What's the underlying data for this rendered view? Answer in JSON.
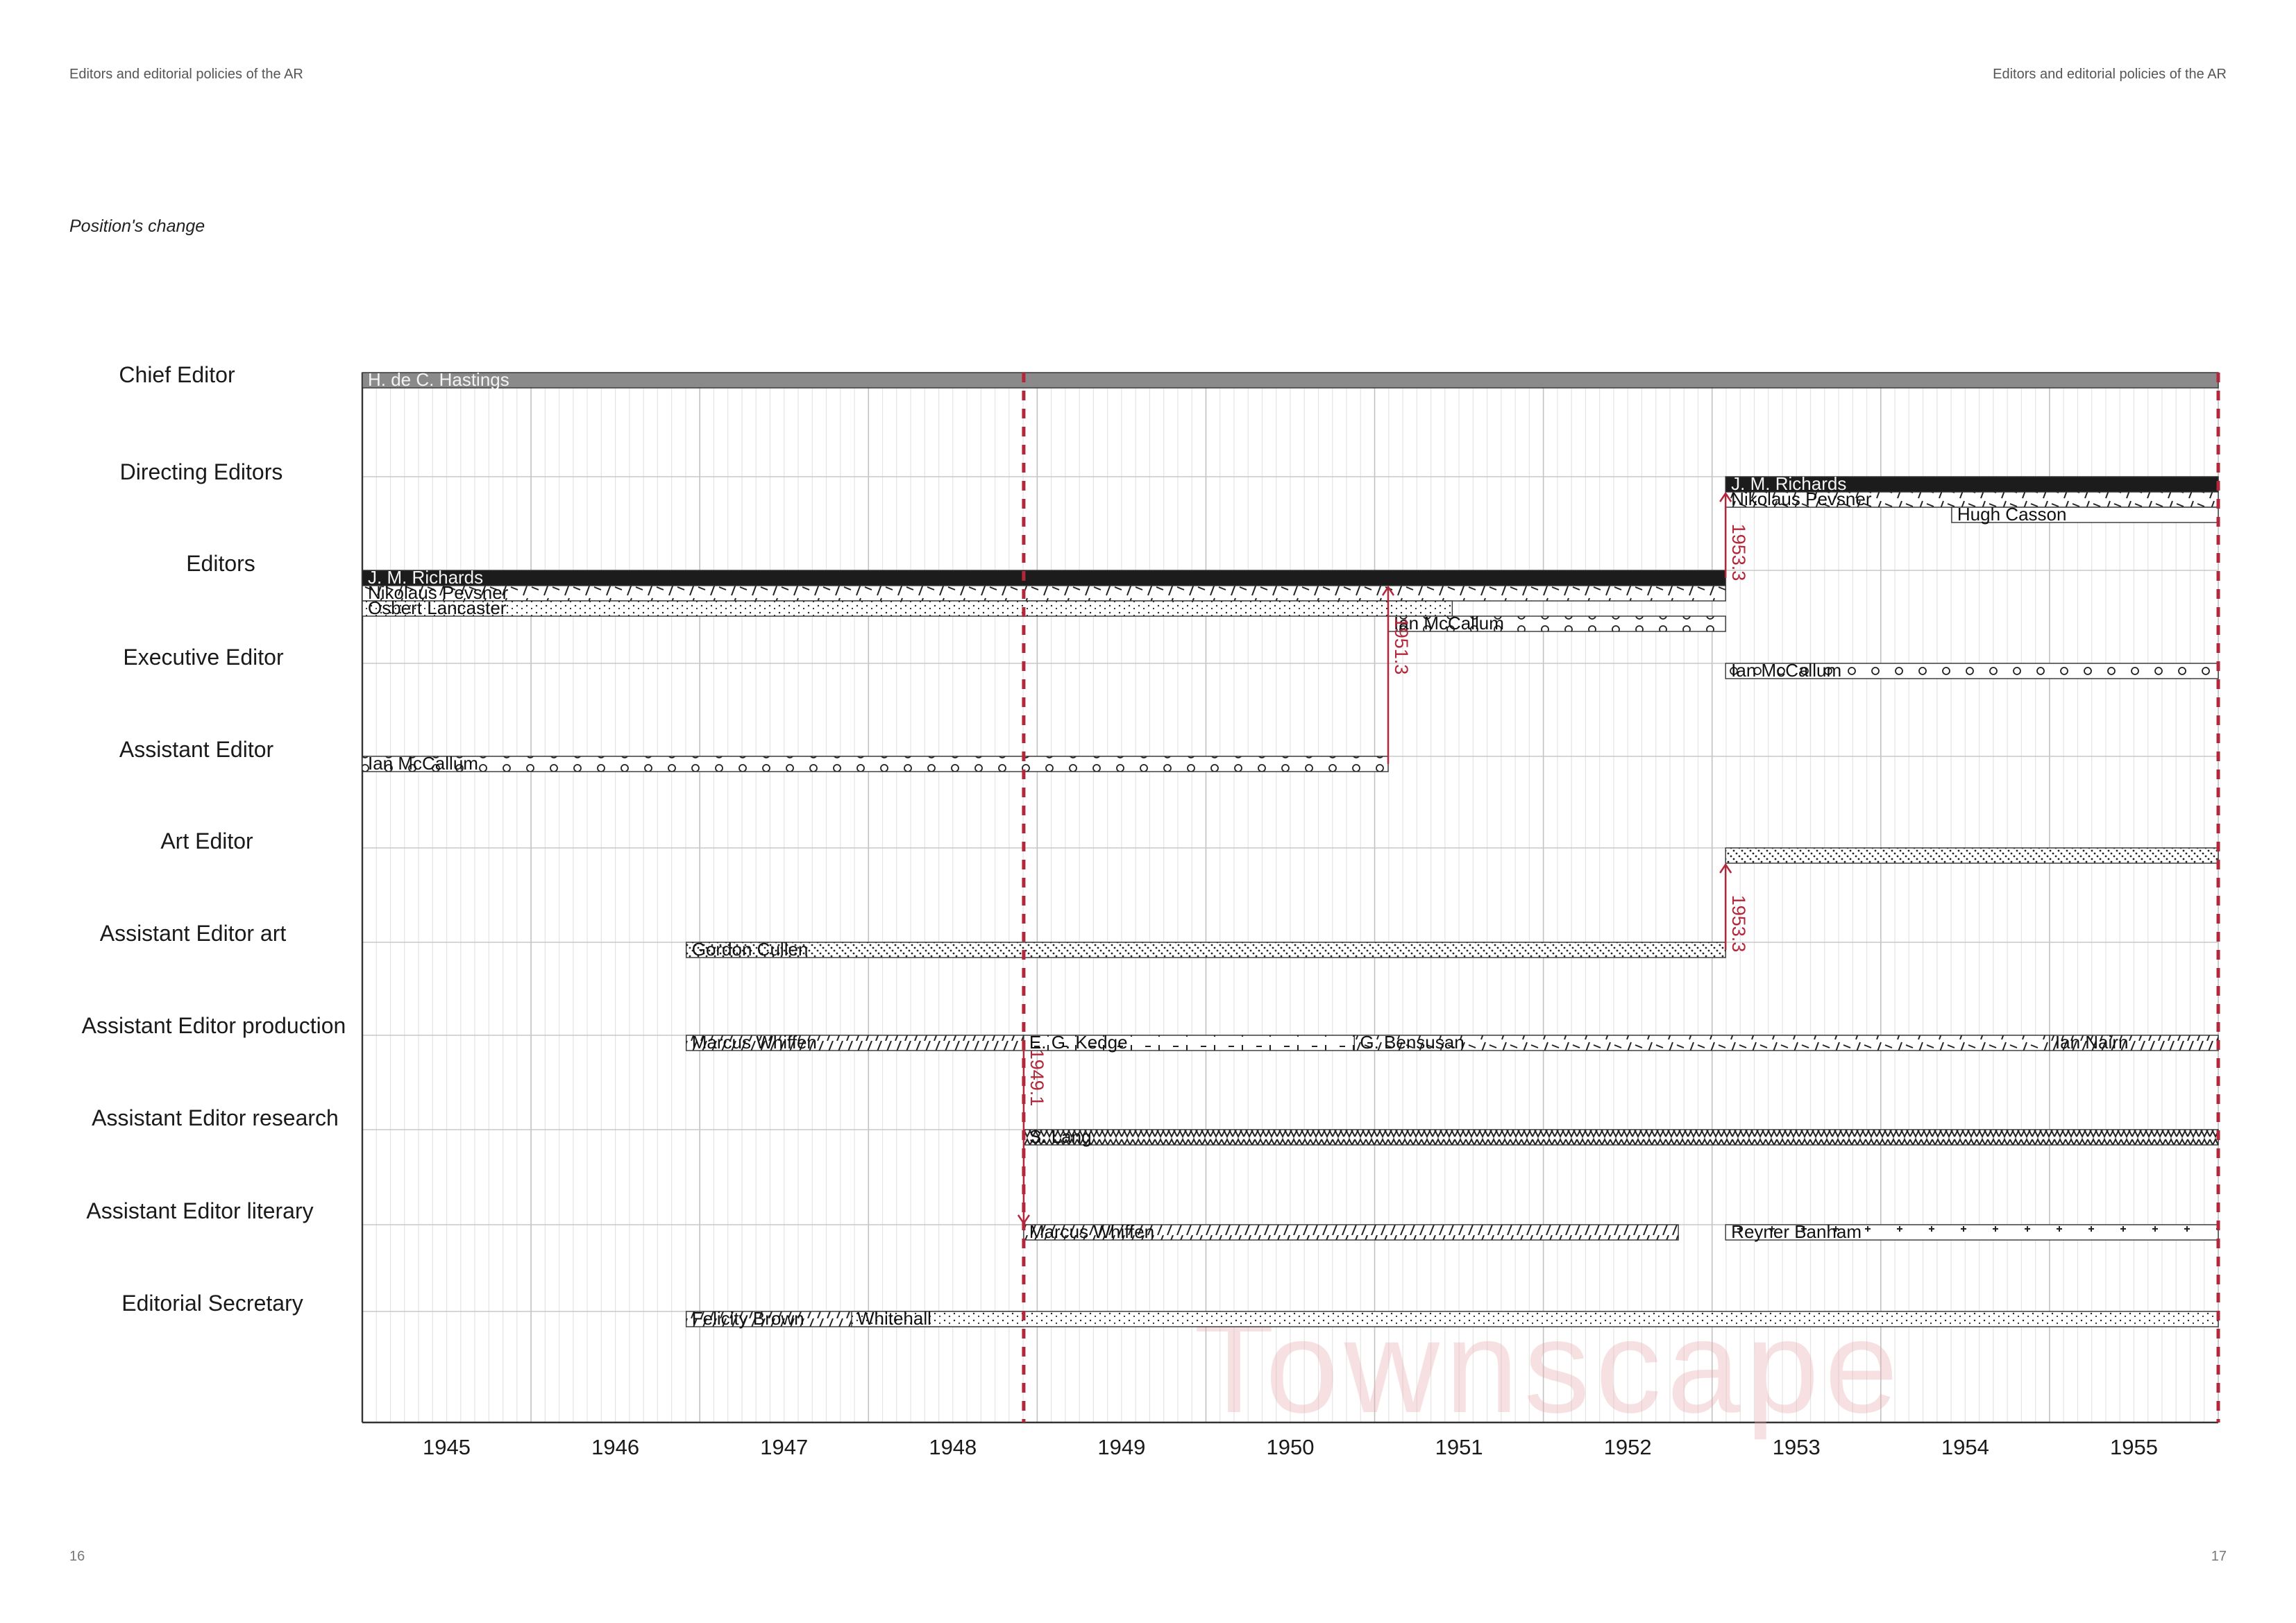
{
  "header": {
    "left_title": "Editors and editorial policies of the AR",
    "right_title": "Editors and editorial policies of the AR",
    "subtitle": "Position's change"
  },
  "page_numbers": {
    "left": "16",
    "right": "17"
  },
  "colors": {
    "accent_red": "#b3273a",
    "grid": "#cfcfcf",
    "bar_dark": "#1c1c1c",
    "bar_grey": "#8a8a8a",
    "watermark": "#e9a9ae"
  },
  "chart_data": {
    "type": "timeline",
    "xlim": [
      1944.5,
      1955.5
    ],
    "years": [
      "1945",
      "1946",
      "1947",
      "1948",
      "1949",
      "1950",
      "1951",
      "1952",
      "1953",
      "1954",
      "1955"
    ],
    "categories": [
      "Chief Editor",
      "Directing Editors",
      "Editors",
      "Executive Editor",
      "Assistant Editor",
      "Art Editor",
      "Assistant Editor art",
      "Assistant Editor production",
      "Assistant Editor research",
      "Assistant Editor literary",
      "Editorial Secretary"
    ],
    "bars": [
      {
        "category": 0,
        "lane": 0,
        "start": 1944.5,
        "end": 1955.5,
        "name": "H. de C. Hastings",
        "pattern": "grey"
      },
      {
        "category": 1,
        "lane": 0,
        "start": 1952.58,
        "end": 1955.5,
        "name": "J. M. Richards",
        "pattern": "black"
      },
      {
        "category": 1,
        "lane": 1,
        "start": 1952.58,
        "end": 1955.5,
        "name": "Nikolaus Pevsner",
        "pattern": "slashes"
      },
      {
        "category": 1,
        "lane": 2,
        "start": 1953.92,
        "end": 1955.5,
        "name": "Hugh Casson",
        "pattern": "none"
      },
      {
        "category": 2,
        "lane": 0,
        "start": 1944.5,
        "end": 1952.58,
        "name": "J. M. Richards",
        "pattern": "black"
      },
      {
        "category": 2,
        "lane": 1,
        "start": 1944.5,
        "end": 1952.58,
        "name": "Nikolaus Pevsner",
        "pattern": "slashes"
      },
      {
        "category": 2,
        "lane": 2,
        "start": 1944.5,
        "end": 1950.96,
        "name": "Osbert Lancaster",
        "pattern": "dots"
      },
      {
        "category": 2,
        "lane": 3,
        "start": 1950.58,
        "end": 1952.58,
        "name": "Ian McCallum",
        "pattern": "circles"
      },
      {
        "category": 3,
        "lane": 0,
        "start": 1952.58,
        "end": 1955.5,
        "name": "Ian McCallum",
        "pattern": "circles"
      },
      {
        "category": 4,
        "lane": 0,
        "start": 1944.5,
        "end": 1950.58,
        "name": "Ian McCallum",
        "pattern": "circles"
      },
      {
        "category": 5,
        "lane": 0,
        "start": 1952.58,
        "end": 1955.5,
        "name": "",
        "pattern": "diagdots"
      },
      {
        "category": 6,
        "lane": 0,
        "start": 1946.42,
        "end": 1952.58,
        "name": "Gordon Cullen",
        "pattern": "diagdots"
      },
      {
        "category": 7,
        "lane": 0,
        "start": 1946.42,
        "end": 1948.42,
        "name": "Marcus Whiffen",
        "pattern": "hatch"
      },
      {
        "category": 7,
        "lane": 0,
        "start": 1948.42,
        "end": 1950.38,
        "name": "E. G. Kedge",
        "pattern": "ticks"
      },
      {
        "category": 7,
        "lane": 0,
        "start": 1950.38,
        "end": 1954.5,
        "name": "G. Bensusan",
        "pattern": "slashes"
      },
      {
        "category": 7,
        "lane": 0,
        "start": 1954.5,
        "end": 1955.5,
        "name": "Ian Nairn",
        "pattern": "hatch"
      },
      {
        "category": 8,
        "lane": 0,
        "start": 1948.42,
        "end": 1955.5,
        "name": "S. Lang",
        "pattern": "zigzag"
      },
      {
        "category": 9,
        "lane": 0,
        "start": 1948.42,
        "end": 1952.3,
        "name": "Marcus Whiffen",
        "pattern": "hatch"
      },
      {
        "category": 9,
        "lane": 0,
        "start": 1952.58,
        "end": 1955.5,
        "name": "Reyner Banham",
        "pattern": "plus"
      },
      {
        "category": 10,
        "lane": 0,
        "start": 1946.42,
        "end": 1948.42,
        "name": "Felicity Brown",
        "pattern": "hatch"
      },
      {
        "category": 10,
        "lane": 0,
        "start": 1947.4,
        "end": 1955.5,
        "name": "Whitehall",
        "pattern": "dots"
      }
    ],
    "markers": [
      {
        "x": 1948.42,
        "style": "dashed-red"
      },
      {
        "x": 1955.5,
        "style": "dashed-red"
      }
    ],
    "transitions": [
      {
        "x": 1948.42,
        "from_category": 7,
        "to_category": 9,
        "label": "1949.1"
      },
      {
        "x": 1950.58,
        "from_category": 4,
        "to_category": 2,
        "label": "1951.3"
      },
      {
        "x": 1952.58,
        "from_category": 2,
        "to_category": 1,
        "label": "1953.3"
      },
      {
        "x": 1952.58,
        "from_category": 6,
        "to_category": 5,
        "label": "1953.3"
      }
    ],
    "annotation": "Townscape"
  }
}
